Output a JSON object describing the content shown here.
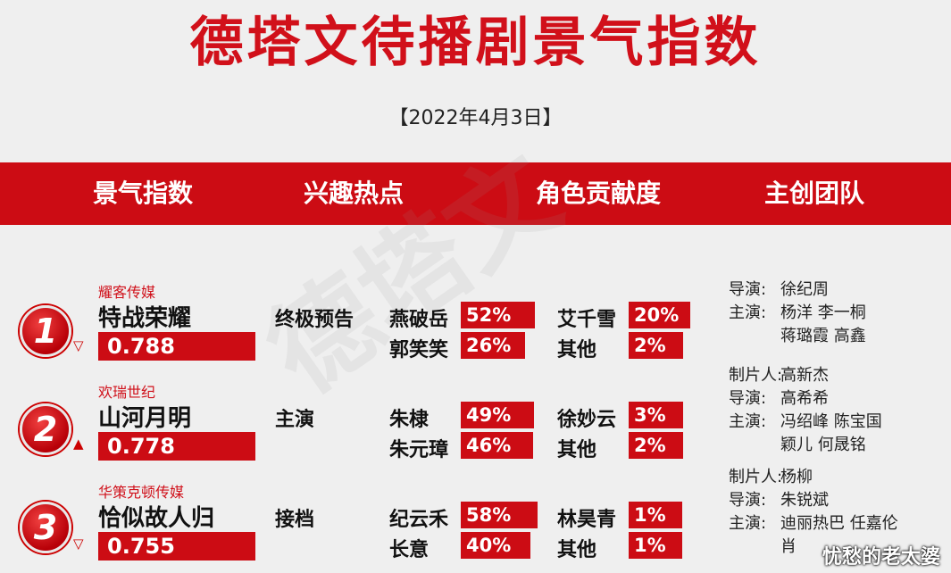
{
  "title": "德塔文待播剧景气指数",
  "date": "【2022年4月3日】",
  "headers": [
    "景气指数",
    "兴趣热点",
    "角色贡献度",
    "主创团队"
  ],
  "watermark": "德塔文",
  "entries": [
    {
      "rank": "1",
      "trend": "▽",
      "company": "耀客传媒",
      "name": "特战荣耀",
      "score": "0.788",
      "hotspot": "终极预告",
      "roles": [
        {
          "name": "燕破岳",
          "pct": "52%",
          "fill": 0.52
        },
        {
          "name": "艾千雪",
          "pct": "20%",
          "fill": 0.2
        },
        {
          "name": "郭笑笑",
          "pct": "26%",
          "fill": 0.26
        },
        {
          "name": "其他",
          "pct": "2%",
          "fill": 0.02
        }
      ],
      "team": [
        {
          "role": "导演:",
          "people": "徐纪周"
        },
        {
          "role": "主演:",
          "people": "杨洋 李一桐"
        },
        {
          "role": "",
          "people": "蒋璐霞 高鑫"
        }
      ]
    },
    {
      "rank": "2",
      "trend": "▲",
      "company": "欢瑞世纪",
      "name": "山河月明",
      "score": "0.778",
      "hotspot": "主演",
      "roles": [
        {
          "name": "朱棣",
          "pct": "49%",
          "fill": 0.49
        },
        {
          "name": "徐妙云",
          "pct": "3%",
          "fill": 0.03
        },
        {
          "name": "朱元璋",
          "pct": "46%",
          "fill": 0.46
        },
        {
          "name": "其他",
          "pct": "2%",
          "fill": 0.02
        }
      ],
      "team": [
        {
          "role": "制片人:",
          "people": "高新杰"
        },
        {
          "role": "导演:",
          "people": "高希希"
        },
        {
          "role": "主演:",
          "people": "冯绍峰 陈宝国"
        },
        {
          "role": "",
          "people": "颖儿 何晟铭"
        }
      ]
    },
    {
      "rank": "3",
      "trend": "▽",
      "company": "华策克顿传媒",
      "name": "恰似故人归",
      "score": "0.755",
      "hotspot": "接档",
      "roles": [
        {
          "name": "纪云禾",
          "pct": "58%",
          "fill": 0.58
        },
        {
          "name": "林昊青",
          "pct": "1%",
          "fill": 0.01
        },
        {
          "name": "长意",
          "pct": "40%",
          "fill": 0.4
        },
        {
          "name": "其他",
          "pct": "1%",
          "fill": 0.01
        }
      ],
      "team": [
        {
          "role": "制片人:",
          "people": "杨柳"
        },
        {
          "role": "导演:",
          "people": "朱锐斌"
        },
        {
          "role": "主演:",
          "people": "迪丽热巴 任嘉伦"
        },
        {
          "role": "",
          "people": "肖"
        }
      ]
    }
  ],
  "signature": "忧愁的老太婆",
  "colors": {
    "accent": "#cc0c14",
    "title": "#d1101a",
    "background": "#efefef"
  }
}
